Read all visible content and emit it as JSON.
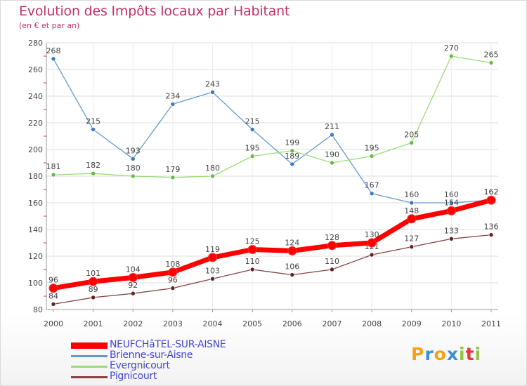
{
  "header": {
    "title": "Evolution des Impôts locaux par Habitant",
    "subtitle": "(en € et par an)"
  },
  "logo": {
    "text": "Proxiti",
    "letters": [
      "P",
      "r",
      "o",
      "x",
      "i",
      "t",
      "i"
    ],
    "colors": [
      "#f5a21b",
      "#3d8fd6",
      "#f5a21b",
      "#3d8fd6",
      "#8dc63f",
      "#e53935",
      "#8dc63f"
    ]
  },
  "chart_data": {
    "type": "line",
    "title": "Evolution des Impôts locaux par Habitant",
    "subtitle": "(en € et par an)",
    "xlabel": "",
    "ylabel": "",
    "x": [
      "2000",
      "2001",
      "2002",
      "2003",
      "2004",
      "2005",
      "2006",
      "2007",
      "2008",
      "2009",
      "2010",
      "2011"
    ],
    "ylim": [
      80,
      280
    ],
    "yticks": [
      "80",
      "100",
      "120",
      "140",
      "160",
      "180",
      "200",
      "220",
      "240",
      "260",
      "280"
    ],
    "grid": "horizontal",
    "legend_position": "bottom-left",
    "series": [
      {
        "name": "NEUFCHâTEL-SUR-AISNE",
        "color": "#ff0000",
        "point_color": "#cc0000",
        "values": [
          96,
          101,
          104,
          108,
          119,
          125,
          124,
          128,
          130,
          148,
          154,
          162
        ],
        "labels": [
          "96",
          "101",
          "104",
          "108",
          "119",
          "125",
          "124",
          "128",
          "130",
          "148",
          "154",
          "162"
        ],
        "thick": true
      },
      {
        "name": "Brienne-sur-Aisne",
        "color": "#6699cc",
        "point_color": "#3d7ab8",
        "values": [
          268,
          215,
          193,
          234,
          243,
          215,
          189,
          211,
          167,
          160,
          160,
          162
        ],
        "labels": [
          "268",
          "215",
          "193",
          "234",
          "243",
          "215",
          "189",
          "211",
          "167",
          "160",
          "160",
          "162"
        ]
      },
      {
        "name": "Evergnicourt",
        "color": "#99dd77",
        "point_color": "#66bb44",
        "values": [
          181,
          182,
          180,
          179,
          180,
          195,
          199,
          190,
          195,
          205,
          270,
          265
        ],
        "labels": [
          "181",
          "182",
          "180",
          "179",
          "180",
          "195",
          "199",
          "190",
          "195",
          "205",
          "270",
          "265"
        ]
      },
      {
        "name": "Pignicourt",
        "color": "#884444",
        "point_color": "#662222",
        "values": [
          84,
          89,
          92,
          96,
          103,
          110,
          106,
          110,
          121,
          127,
          133,
          136
        ],
        "labels": [
          "84",
          "89",
          "92",
          "96",
          "103",
          "110",
          "106",
          "110",
          "121",
          "127",
          "133",
          "136"
        ]
      }
    ]
  }
}
